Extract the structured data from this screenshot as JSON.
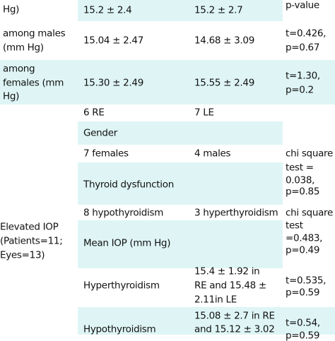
{
  "table": {
    "row1": {
      "label": "Hg)",
      "re": "15.2 ± 2.4",
      "le": "15.2 ± 2.7",
      "stat": "p-value"
    },
    "males": {
      "label": [
        "among males",
        "(mm Hg)"
      ],
      "re": "15.04 ± 2.47",
      "le": "14.68 ± 3.09",
      "stat": [
        "t=0.426,",
        "p=0.67"
      ]
    },
    "females": {
      "label": [
        "among",
        "females (mm",
        "Hg)"
      ],
      "re": "15.30 ± 2.49",
      "le": "15.55 ± 2.49",
      "stat": [
        "t=1.30,",
        "p=0.2"
      ]
    },
    "eyes": {
      "re": "6 RE",
      "le": "7 LE"
    },
    "gender": {
      "label": "Gender",
      "female": "7 females",
      "male": "4 males",
      "stat": [
        "chi square",
        "test =",
        "0.038,",
        "p=0.85"
      ]
    },
    "thyroid": {
      "label": "Thyroid dysfunction",
      "hypo": "8 hypothyroidism",
      "hyper": "3 hyperthyroidism",
      "stat": [
        "chi square",
        "test",
        "=0.483,",
        "p=0.49"
      ]
    },
    "group": [
      "Elevated IOP",
      "(Patients=11;",
      "Eyes=13)"
    ],
    "mean_iop": "Mean IOP (mm Hg)",
    "hyper": {
      "label": "Hyperthyroidism",
      "value": [
        "15.4 ± 1.92 in",
        "RE and 15.48 ±",
        "2.11in LE"
      ],
      "stat": [
        "t=0.535,",
        "p=0.59"
      ]
    },
    "hypo": {
      "label": "Hypothyroidism",
      "value": [
        "15.08 ± 2.7 in RE",
        "and 15.12 ± 3.02"
      ],
      "stat": [
        "t=0.54,",
        "p=0.59"
      ]
    }
  }
}
